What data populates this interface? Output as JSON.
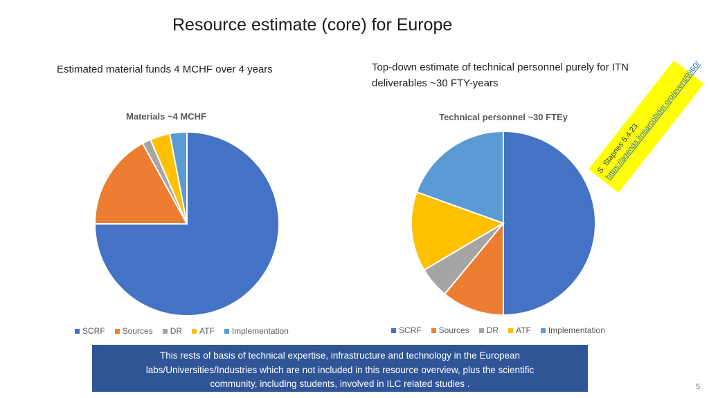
{
  "slide": {
    "title": "Resource estimate (core) for Europe",
    "left_text": "Estimated material funds 4 MCHF over 4 years",
    "right_text_line1": "Top-down estimate of technical personnel purely for ITN",
    "right_text_line2": "deliverables ~30 FTY-years",
    "note_lines": [
      "This rests of basis of technical expertise, infrastructure and technology in the European",
      "labs/Universities/Industries which are not included in this resource overview, plus the scientific",
      "community, including students, involved in ILC related studies ."
    ],
    "page_number": "5",
    "sticky_line1": "S. Stapnes 5.4.23",
    "sticky_line2": "https://agenda.linearcollider.org/event/9960/",
    "note_color": "#2f5597",
    "sticky_color": "#ffff00"
  },
  "chart_data": [
    {
      "type": "pie",
      "title": "Materials ~4 MCHF",
      "categories": [
        "SCRF",
        "Sources",
        "DR",
        "ATF",
        "Implementation"
      ],
      "values": [
        75,
        17,
        1.5,
        3.5,
        3
      ],
      "colors": [
        "#4472c4",
        "#ed7d31",
        "#a5a5a5",
        "#ffc000",
        "#5b9bd5"
      ],
      "legend": "bottom"
    },
    {
      "type": "pie",
      "title": "Technical personnel ~30 FTEy",
      "categories": [
        "SCRF",
        "Sources",
        "DR",
        "ATF",
        "Implementation"
      ],
      "values": [
        50,
        11,
        5.5,
        14,
        19.5
      ],
      "colors": [
        "#4472c4",
        "#ed7d31",
        "#a5a5a5",
        "#ffc000",
        "#5b9bd5"
      ],
      "legend": "bottom"
    }
  ]
}
